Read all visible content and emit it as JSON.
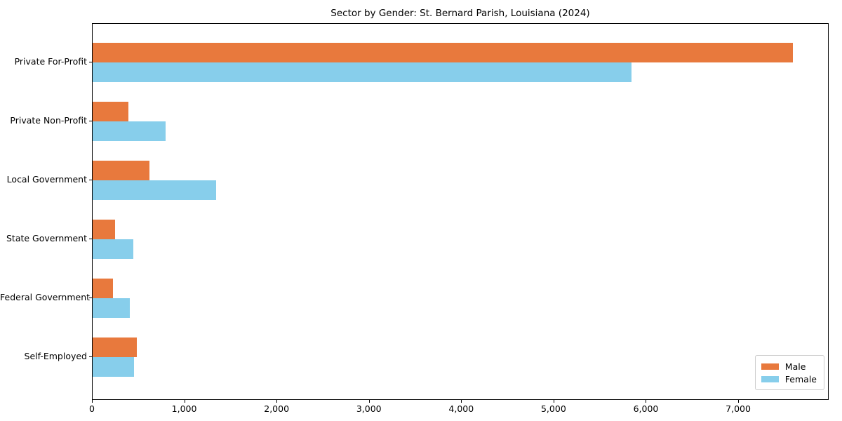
{
  "title": "Sector by Gender: St. Bernard Parish, Louisiana (2024)",
  "colors": {
    "male": "#e8793d",
    "female": "#87ceeb",
    "axis": "#000000",
    "legend_border": "#cccccc",
    "background": "#ffffff"
  },
  "chart_data": {
    "type": "bar",
    "orientation": "horizontal",
    "title": "Sector by Gender: St. Bernard Parish, Louisiana (2024)",
    "xlabel": "",
    "ylabel": "",
    "categories": [
      "Private For-Profit",
      "Private Non-Profit",
      "Local Government",
      "State Government",
      "Federal Government",
      "Self-Employed"
    ],
    "series": [
      {
        "name": "Male",
        "color": "#e8793d",
        "values": [
          7600,
          390,
          620,
          245,
          220,
          480
        ]
      },
      {
        "name": "Female",
        "color": "#87ceeb",
        "values": [
          5850,
          790,
          1340,
          440,
          400,
          450
        ]
      }
    ],
    "xlim": [
      0,
      7980
    ],
    "xticks": [
      0,
      1000,
      2000,
      3000,
      4000,
      5000,
      6000,
      7000
    ],
    "xtick_labels": [
      "0",
      "1,000",
      "2,000",
      "3,000",
      "4,000",
      "5,000",
      "6,000",
      "7,000"
    ],
    "grid": false,
    "legend": {
      "position": "lower right",
      "entries": [
        "Male",
        "Female"
      ]
    }
  }
}
